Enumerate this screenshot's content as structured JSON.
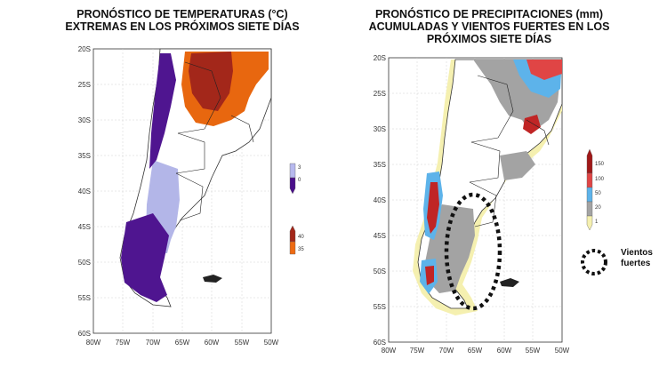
{
  "left_panel": {
    "title_line1": "PRONÓSTICO DE TEMPERATURAS (°C)",
    "title_line2": "EXTREMAS EN LOS PRÓXIMOS SIETE DÍAS",
    "lat_ticks": [
      "20S",
      "25S",
      "30S",
      "35S",
      "40S",
      "45S",
      "50S",
      "55S",
      "60S"
    ],
    "lon_ticks": [
      "80W",
      "75W",
      "70W",
      "65W",
      "60W",
      "55W",
      "50W"
    ],
    "legend_cold": {
      "labels": [
        "3",
        "0"
      ],
      "colors": [
        "#b7b9ee",
        "#4a0f8a"
      ]
    },
    "legend_hot": {
      "labels": [
        "40",
        "35"
      ],
      "colors": [
        "#a3271a",
        "#ee6a12"
      ]
    },
    "colors": {
      "cold_dark": "#4f1590",
      "cold_light": "#b3b6e8",
      "hot_dark": "#a3271a",
      "hot_light": "#e8670f"
    }
  },
  "right_panel": {
    "title_line1": "PRONÓSTICO DE PRECIPITACIONES (mm)",
    "title_line2": "ACUMULADAS Y VIENTOS FUERTES EN LOS",
    "title_line3": "PRÓXIMOS SIETE DÍAS",
    "lat_ticks": [
      "20S",
      "25S",
      "30S",
      "35S",
      "40S",
      "45S",
      "50S",
      "55S",
      "60S"
    ],
    "lon_ticks": [
      "80W",
      "75W",
      "70W",
      "65W",
      "60W",
      "55W",
      "50W"
    ],
    "legend_precip": {
      "labels": [
        "150",
        "100",
        "50",
        "20",
        "1"
      ],
      "colors": [
        "#a01818",
        "#e04545",
        "#5db3ea",
        "#a3a3a3",
        "#f5f0b0"
      ]
    },
    "vientos_label_line1": "Vientos",
    "vientos_label_line2": "fuertes"
  }
}
